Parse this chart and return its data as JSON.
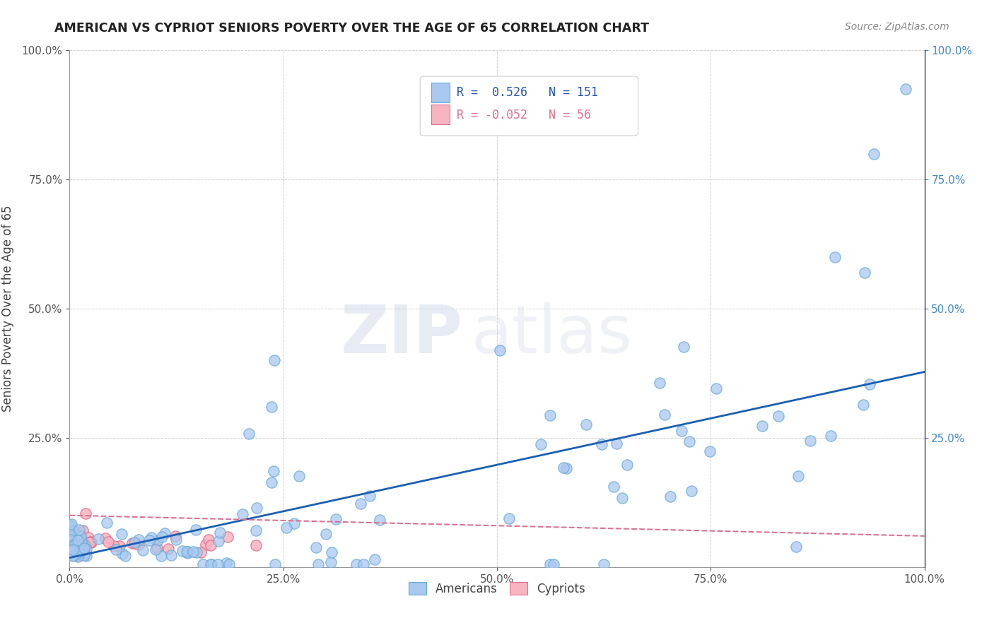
{
  "title": "AMERICAN VS CYPRIOT SENIORS POVERTY OVER THE AGE OF 65 CORRELATION CHART",
  "source": "Source: ZipAtlas.com",
  "ylabel": "Seniors Poverty Over the Age of 65",
  "r_american": 0.526,
  "n_american": 151,
  "r_cypriot": -0.052,
  "n_cypriot": 56,
  "american_color": "#a8c8f0",
  "american_edge": "#6aaad4",
  "cypriot_color": "#f8b4c0",
  "cypriot_edge": "#e07090",
  "line_american": "#1a5fb4",
  "line_cypriot": "#e07090",
  "background": "#ffffff",
  "watermark_zip": "ZIP",
  "watermark_atlas": "atlas",
  "xtick_labels": [
    "0.0%",
    "25.0%",
    "50.0%",
    "75.0%",
    "100.0%"
  ],
  "xtick_vals": [
    0.0,
    0.25,
    0.5,
    0.75,
    1.0
  ],
  "ytick_labels": [
    "25.0%",
    "50.0%",
    "75.0%",
    "100.0%"
  ],
  "ytick_vals": [
    0.25,
    0.5,
    0.75,
    1.0
  ],
  "right_ytick_labels": [
    "100.0%",
    "75.0%",
    "50.0%",
    "25.0%"
  ],
  "right_ytick_vals": [
    1.0,
    0.75,
    0.5,
    0.25
  ],
  "legend_label_american": "Americans",
  "legend_label_cypriot": "Cypriots",
  "grid_color": "#cccccc",
  "tick_color": "#555555",
  "right_tick_color": "#4488cc"
}
